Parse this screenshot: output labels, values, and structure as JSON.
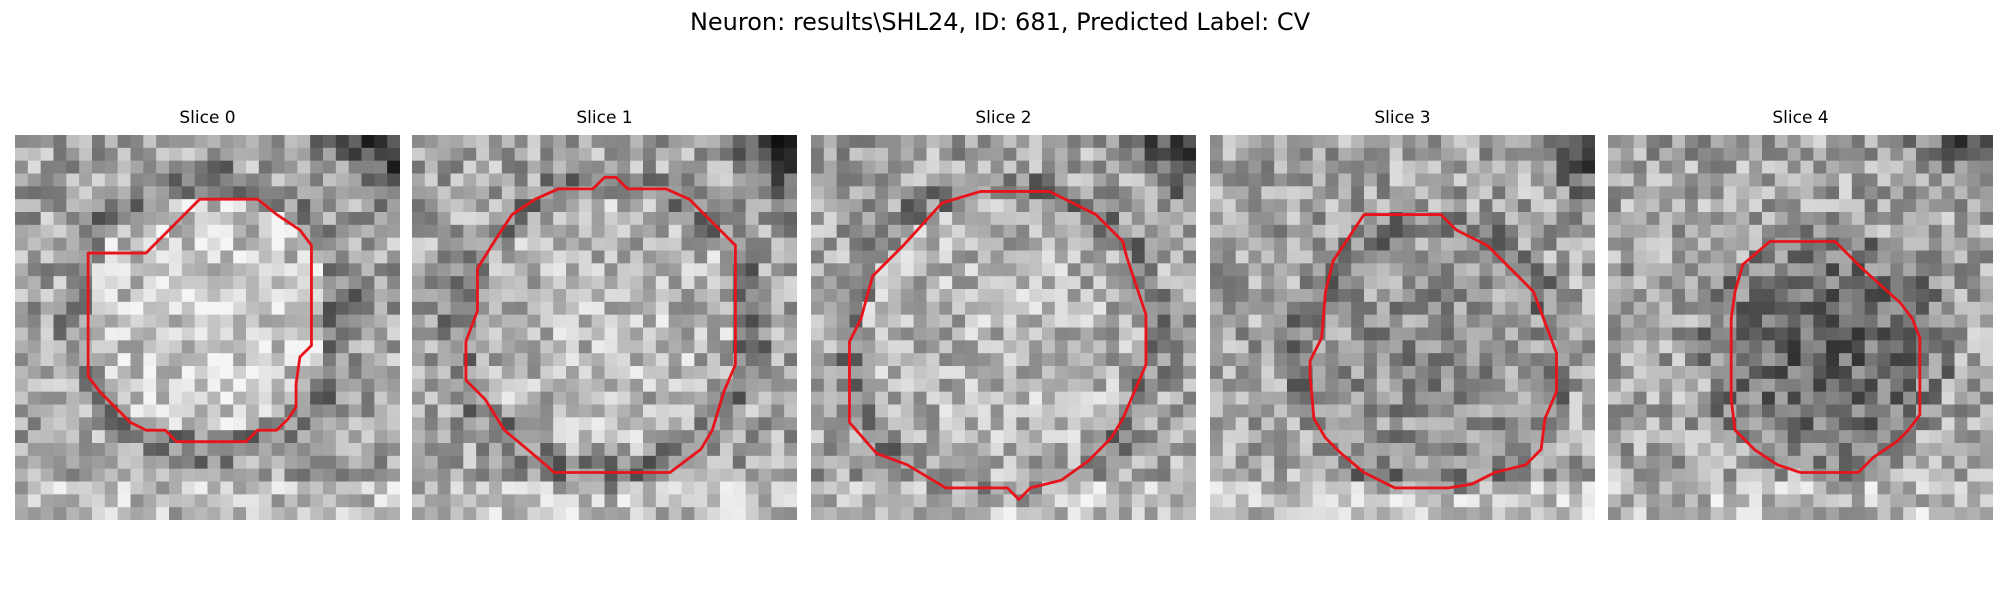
{
  "figure": {
    "title": "Neuron: results\\SHL24, ID: 681, Predicted Label: CV"
  },
  "panels": [
    {
      "title": "Slice 0"
    },
    {
      "title": "Slice 1"
    },
    {
      "title": "Slice 2"
    },
    {
      "title": "Slice 3"
    },
    {
      "title": "Slice 4"
    }
  ],
  "style": {
    "contour_color": "#e8141b",
    "image_colormap": "grayscale"
  }
}
